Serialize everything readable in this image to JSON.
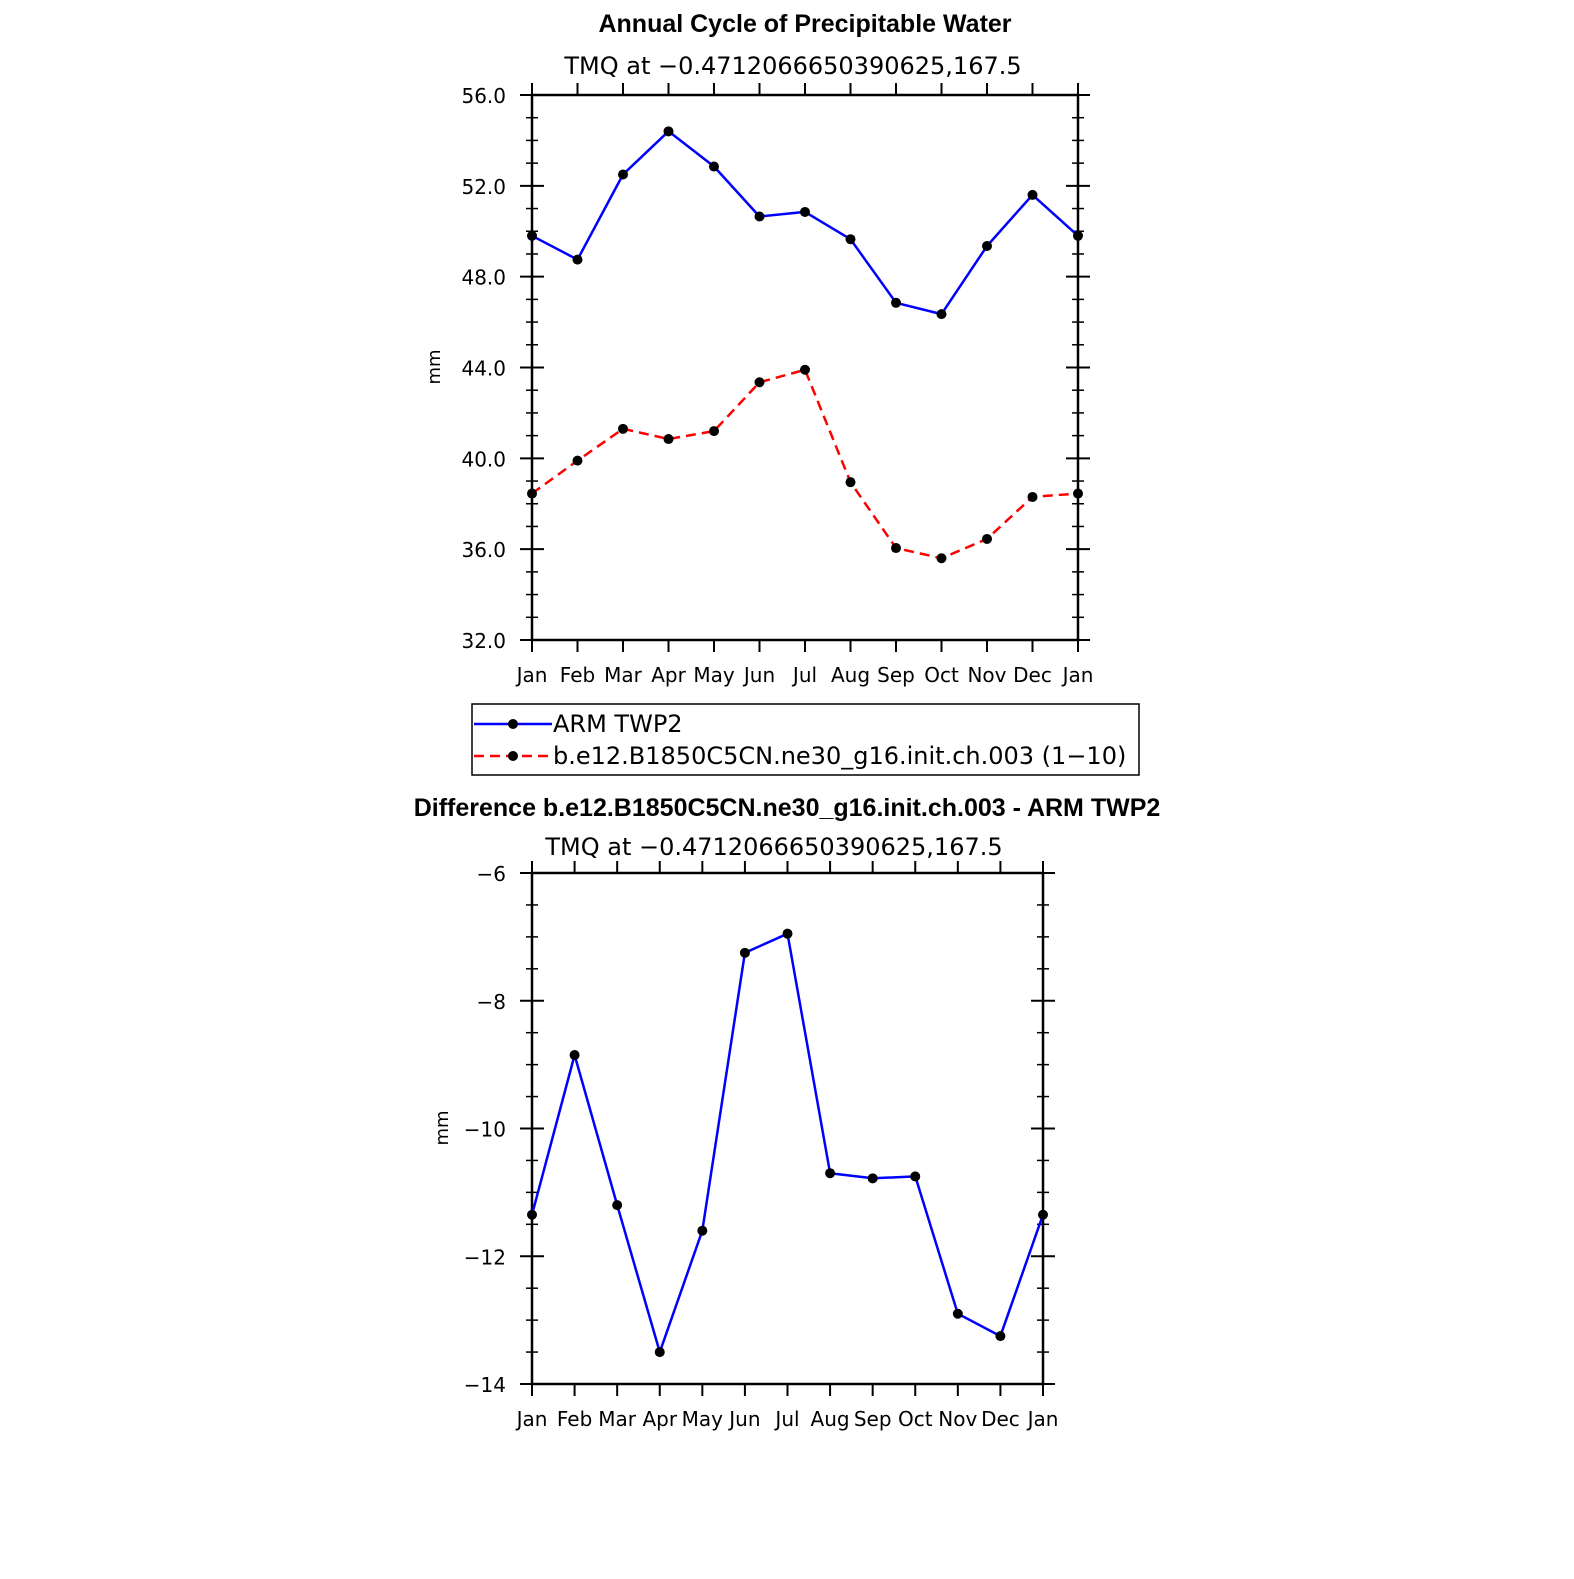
{
  "chart_data": [
    {
      "type": "line",
      "title": "Annual Cycle of Precipitable Water",
      "subtitle": "TMQ at −0.4712066650390625,167.5",
      "ylabel": "mm",
      "xlabel": "",
      "ylim": [
        32,
        56
      ],
      "yticks": [
        "32.0",
        "36.0",
        "40.0",
        "44.0",
        "48.0",
        "52.0",
        "56.0"
      ],
      "ytick_values": [
        32,
        36,
        40,
        44,
        48,
        52,
        56
      ],
      "categories": [
        "Jan",
        "Feb",
        "Mar",
        "Apr",
        "May",
        "Jun",
        "Jul",
        "Aug",
        "Sep",
        "Oct",
        "Nov",
        "Dec",
        "Jan"
      ],
      "series": [
        {
          "name": "ARM TWP2",
          "color": "#0000ff",
          "dash": "solid",
          "values": [
            49.8,
            48.75,
            52.5,
            54.4,
            52.85,
            50.65,
            50.85,
            49.65,
            46.85,
            46.35,
            49.35,
            51.6,
            49.8
          ]
        },
        {
          "name": "b.e12.B1850C5CN.ne30_g16.init.ch.003 (1−10)",
          "color": "#ff0000",
          "dash": "dashed",
          "values": [
            38.45,
            39.9,
            41.3,
            40.85,
            41.2,
            43.35,
            43.9,
            38.95,
            36.05,
            35.6,
            36.45,
            38.3,
            38.45
          ]
        }
      ],
      "legend": {
        "position": "bottom",
        "entries": [
          "ARM TWP2",
          "b.e12.B1850C5CN.ne30_g16.init.ch.003 (1−10)"
        ]
      },
      "grid": false
    },
    {
      "type": "line",
      "title": "Difference b.e12.B1850C5CN.ne30_g16.init.ch.003 - ARM TWP2",
      "subtitle": "TMQ at −0.4712066650390625,167.5",
      "ylabel": "mm",
      "xlabel": "",
      "ylim": [
        -14,
        -6
      ],
      "yticks": [
        "−14",
        "−12",
        "−10",
        "−8",
        "−6"
      ],
      "ytick_values": [
        -14,
        -12,
        -10,
        -8,
        -6
      ],
      "categories": [
        "Jan",
        "Feb",
        "Mar",
        "Apr",
        "May",
        "Jun",
        "Jul",
        "Aug",
        "Sep",
        "Oct",
        "Nov",
        "Dec",
        "Jan"
      ],
      "series": [
        {
          "name": "Difference",
          "color": "#0000ff",
          "dash": "solid",
          "values": [
            -11.35,
            -8.85,
            -11.2,
            -13.5,
            -11.6,
            -7.25,
            -6.95,
            -10.7,
            -10.78,
            -10.75,
            -12.9,
            -13.25,
            -11.35
          ]
        }
      ],
      "grid": false
    }
  ]
}
